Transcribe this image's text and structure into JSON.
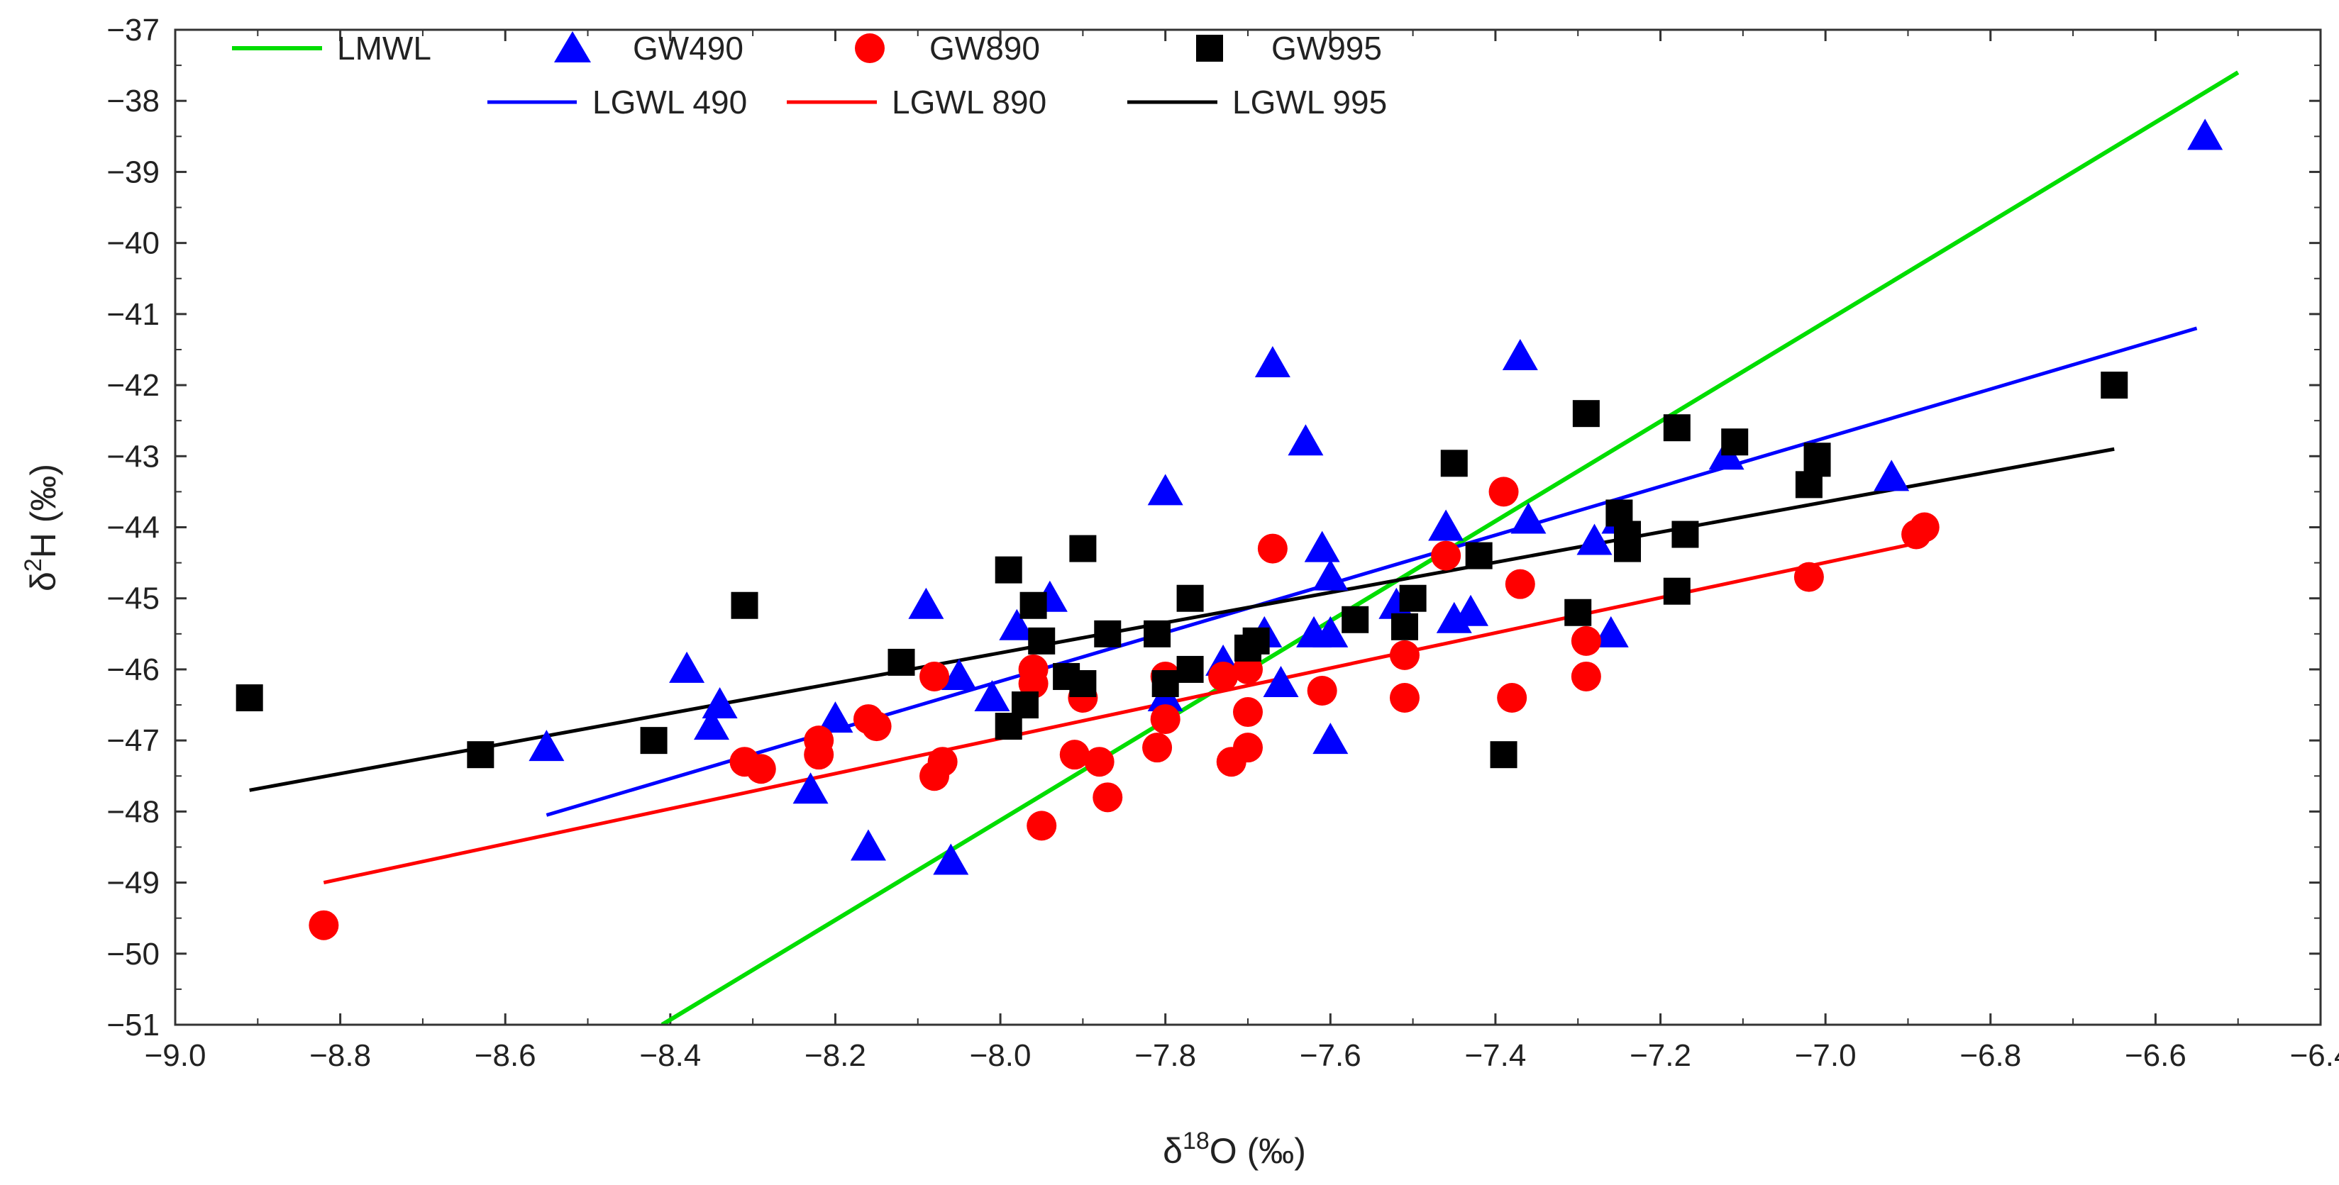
{
  "chart_data": {
    "type": "scatter",
    "xlabel": "δ18O (‰)",
    "xlabel_parts": {
      "prefix": "δ",
      "sup": "18",
      "suffix": "O (‰)"
    },
    "ylabel": "δ2H (‰)",
    "ylabel_parts": {
      "prefix": "δ",
      "sup": "2",
      "suffix": "H (‰)"
    },
    "xlim": [
      -9.0,
      -6.4
    ],
    "ylim": [
      -51,
      -37
    ],
    "xticks": [
      "−9.0",
      "−8.8",
      "−8.6",
      "−8.4",
      "−8.2",
      "−8.0",
      "−7.8",
      "−7.6",
      "−7.4",
      "−7.2",
      "−7.0",
      "−6.8",
      "−6.6",
      "−6.4"
    ],
    "xtick_values": [
      -9.0,
      -8.8,
      -8.6,
      -8.4,
      -8.2,
      -8.0,
      -7.8,
      -7.6,
      -7.4,
      -7.2,
      -7.0,
      -6.8,
      -6.6,
      -6.4
    ],
    "yticks": [
      "−37",
      "−38",
      "−39",
      "−40",
      "−41",
      "−42",
      "−43",
      "−44",
      "−45",
      "−46",
      "−47",
      "−48",
      "−49",
      "−50",
      "−51"
    ],
    "ytick_values": [
      -37,
      -38,
      -39,
      -40,
      -41,
      -42,
      -43,
      -44,
      -45,
      -46,
      -47,
      -48,
      -49,
      -50,
      -51
    ],
    "legend_position": "top-left",
    "lines": [
      {
        "name": "LMWL",
        "color": "#00dd00",
        "x": [
          -8.41,
          -6.5
        ],
        "y": [
          -51.0,
          -37.6
        ]
      },
      {
        "name": "LGWL 490",
        "color": "#0000ff",
        "x": [
          -8.55,
          -6.55
        ],
        "y": [
          -48.05,
          -41.2
        ]
      },
      {
        "name": "LGWL 890",
        "color": "#ff0000",
        "x": [
          -8.82,
          -6.88
        ],
        "y": [
          -49.0,
          -44.2
        ]
      },
      {
        "name": "LGWL 995",
        "color": "#000000",
        "x": [
          -8.91,
          -6.65
        ],
        "y": [
          -47.7,
          -42.9
        ]
      }
    ],
    "series": [
      {
        "name": "GW490",
        "marker": "triangle",
        "color": "#0000ff",
        "points": [
          [
            -8.55,
            -47.1
          ],
          [
            -8.38,
            -46.0
          ],
          [
            -8.35,
            -46.8
          ],
          [
            -8.34,
            -46.5
          ],
          [
            -8.23,
            -47.7
          ],
          [
            -8.2,
            -46.7
          ],
          [
            -8.16,
            -48.5
          ],
          [
            -8.09,
            -45.1
          ],
          [
            -8.06,
            -48.7
          ],
          [
            -8.05,
            -46.1
          ],
          [
            -8.01,
            -46.4
          ],
          [
            -7.98,
            -45.4
          ],
          [
            -7.94,
            -45.0
          ],
          [
            -7.8,
            -43.5
          ],
          [
            -7.8,
            -46.4
          ],
          [
            -7.73,
            -45.9
          ],
          [
            -7.68,
            -45.5
          ],
          [
            -7.67,
            -41.7
          ],
          [
            -7.66,
            -46.2
          ],
          [
            -7.63,
            -42.8
          ],
          [
            -7.62,
            -45.5
          ],
          [
            -7.61,
            -44.3
          ],
          [
            -7.6,
            -44.7
          ],
          [
            -7.6,
            -45.5
          ],
          [
            -7.6,
            -47.0
          ],
          [
            -7.52,
            -45.1
          ],
          [
            -7.46,
            -44.0
          ],
          [
            -7.45,
            -45.3
          ],
          [
            -7.43,
            -45.2
          ],
          [
            -7.37,
            -41.6
          ],
          [
            -7.36,
            -43.9
          ],
          [
            -7.28,
            -44.2
          ],
          [
            -7.26,
            -45.5
          ],
          [
            -7.25,
            -43.9
          ],
          [
            -7.12,
            -43.0
          ],
          [
            -6.92,
            -43.3
          ],
          [
            -6.54,
            -38.5
          ]
        ]
      },
      {
        "name": "GW890",
        "marker": "circle",
        "color": "#ff0000",
        "points": [
          [
            -8.82,
            -49.6
          ],
          [
            -8.31,
            -47.3
          ],
          [
            -8.29,
            -47.4
          ],
          [
            -8.22,
            -47.0
          ],
          [
            -8.22,
            -47.2
          ],
          [
            -8.16,
            -46.7
          ],
          [
            -8.15,
            -46.8
          ],
          [
            -8.08,
            -46.1
          ],
          [
            -8.08,
            -47.5
          ],
          [
            -8.07,
            -47.3
          ],
          [
            -7.96,
            -46.0
          ],
          [
            -7.96,
            -46.2
          ],
          [
            -7.95,
            -48.2
          ],
          [
            -7.91,
            -47.2
          ],
          [
            -7.9,
            -46.4
          ],
          [
            -7.88,
            -47.3
          ],
          [
            -7.87,
            -47.8
          ],
          [
            -7.8,
            -46.1
          ],
          [
            -7.8,
            -46.7
          ],
          [
            -7.81,
            -47.1
          ],
          [
            -7.73,
            -46.1
          ],
          [
            -7.72,
            -47.3
          ],
          [
            -7.7,
            -47.1
          ],
          [
            -7.7,
            -46.0
          ],
          [
            -7.7,
            -46.6
          ],
          [
            -7.67,
            -44.3
          ],
          [
            -7.61,
            -46.3
          ],
          [
            -7.51,
            -46.4
          ],
          [
            -7.51,
            -45.8
          ],
          [
            -7.46,
            -44.4
          ],
          [
            -7.39,
            -43.5
          ],
          [
            -7.38,
            -46.4
          ],
          [
            -7.37,
            -44.8
          ],
          [
            -7.29,
            -45.6
          ],
          [
            -7.29,
            -46.1
          ],
          [
            -7.02,
            -44.7
          ],
          [
            -6.89,
            -44.1
          ],
          [
            -6.88,
            -44.0
          ]
        ]
      },
      {
        "name": "GW995",
        "marker": "square",
        "color": "#000000",
        "points": [
          [
            -8.91,
            -46.4
          ],
          [
            -8.63,
            -47.2
          ],
          [
            -8.42,
            -47.0
          ],
          [
            -8.31,
            -45.1
          ],
          [
            -8.12,
            -45.9
          ],
          [
            -7.99,
            -44.6
          ],
          [
            -7.99,
            -46.8
          ],
          [
            -7.97,
            -46.5
          ],
          [
            -7.96,
            -45.1
          ],
          [
            -7.95,
            -45.6
          ],
          [
            -7.92,
            -46.1
          ],
          [
            -7.9,
            -44.3
          ],
          [
            -7.9,
            -46.2
          ],
          [
            -7.87,
            -45.5
          ],
          [
            -7.81,
            -45.5
          ],
          [
            -7.8,
            -46.2
          ],
          [
            -7.77,
            -46.0
          ],
          [
            -7.77,
            -45.0
          ],
          [
            -7.7,
            -45.7
          ],
          [
            -7.69,
            -45.6
          ],
          [
            -7.57,
            -45.3
          ],
          [
            -7.51,
            -45.4
          ],
          [
            -7.5,
            -45.0
          ],
          [
            -7.45,
            -43.1
          ],
          [
            -7.42,
            -44.4
          ],
          [
            -7.39,
            -47.2
          ],
          [
            -7.3,
            -45.2
          ],
          [
            -7.29,
            -42.4
          ],
          [
            -7.25,
            -43.8
          ],
          [
            -7.24,
            -44.1
          ],
          [
            -7.24,
            -44.3
          ],
          [
            -7.18,
            -44.9
          ],
          [
            -7.18,
            -42.6
          ],
          [
            -7.17,
            -44.1
          ],
          [
            -7.11,
            -42.8
          ],
          [
            -7.02,
            -43.4
          ],
          [
            -7.01,
            -43.0
          ],
          [
            -7.01,
            -43.1
          ],
          [
            -6.65,
            -42.0
          ]
        ]
      }
    ]
  },
  "legend": {
    "lmwl": "LMWL",
    "gw490": "GW490",
    "gw890": "GW890",
    "gw995": "GW995",
    "lgwl490": "LGWL 490",
    "lgwl890": "LGWL 890",
    "lgwl995": "LGWL 995"
  }
}
